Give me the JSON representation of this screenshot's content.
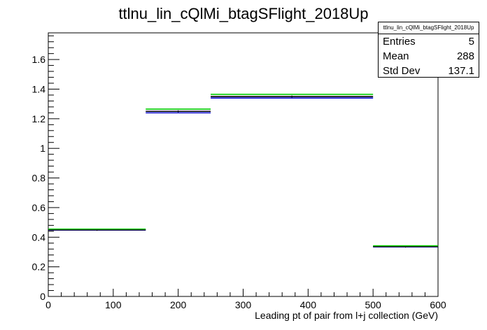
{
  "chart_data": {
    "type": "histogram",
    "title": "ttlnu_lin_cQlMi_btagSFlight_2018Up",
    "xlabel": "Leading pt of pair from l+j collection (GeV)",
    "ylabel": "",
    "xlim": [
      0,
      600
    ],
    "ylim": [
      0,
      1.78
    ],
    "xticks": [
      "0",
      "100",
      "200",
      "300",
      "400",
      "500",
      "600"
    ],
    "yticks": [
      "0",
      "0.2",
      "0.4",
      "0.6",
      "0.8",
      "1",
      "1.2",
      "1.4",
      "1.6"
    ],
    "bin_edges": [
      0,
      150,
      250,
      500,
      600
    ],
    "series": [
      {
        "color": "#0000cc",
        "values": [
          0.448,
          1.24,
          1.34,
          0.335
        ]
      },
      {
        "color": "#000000",
        "values": [
          0.45,
          1.25,
          1.35,
          0.337
        ]
      },
      {
        "color": "#00cc00",
        "values": [
          0.455,
          1.265,
          1.365,
          0.342
        ]
      }
    ],
    "grid": false,
    "legend": "none"
  },
  "stats": {
    "title": "ttlnu_lin_cQlMi_btagSFlight_2018Up",
    "rows": [
      {
        "label": "Entries",
        "value": "5"
      },
      {
        "label": "Mean",
        "value": "288"
      },
      {
        "label": "Std Dev",
        "value": "137.1"
      }
    ]
  }
}
